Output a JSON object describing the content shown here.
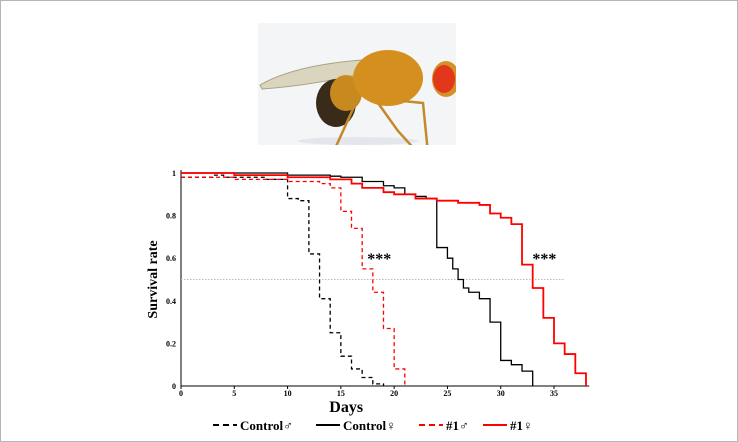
{
  "image": {
    "subject": "fruit fly",
    "background": "#f4f5f7"
  },
  "chart_data": {
    "type": "line",
    "step": true,
    "title": "",
    "xlabel": "Days",
    "ylabel": "Survival rate",
    "xlim": [
      0,
      38
    ],
    "ylim": [
      0,
      1
    ],
    "xticks": [
      0,
      5,
      10,
      15,
      20,
      25,
      30,
      35
    ],
    "yticks": [
      0,
      0.2,
      0.4,
      0.6,
      0.8,
      1
    ],
    "ytick_labels": [
      "0",
      "0.2",
      "0.4",
      "0.6",
      "0.8",
      "1"
    ],
    "grid": false,
    "reference_line": {
      "y": 0.5,
      "style": "dotted",
      "color": "#bbbbbb"
    },
    "legend_placement": "bottom",
    "annotations": [
      {
        "text": "***",
        "x": 18.6,
        "y": 0.6
      },
      {
        "text": "***",
        "x": 34.1,
        "y": 0.6
      }
    ],
    "series": [
      {
        "name": "Control♂",
        "color": "#000000",
        "dash": true,
        "points": [
          [
            0,
            0.98
          ],
          [
            3,
            0.99
          ],
          [
            4,
            0.98
          ],
          [
            8,
            0.97
          ],
          [
            10,
            0.88
          ],
          [
            11,
            0.87
          ],
          [
            12,
            0.62
          ],
          [
            13,
            0.41
          ],
          [
            14,
            0.25
          ],
          [
            15,
            0.14
          ],
          [
            16,
            0.08
          ],
          [
            17,
            0.04
          ],
          [
            18,
            0.01
          ],
          [
            19,
            0
          ]
        ]
      },
      {
        "name": "Control♀",
        "color": "#000000",
        "dash": false,
        "points": [
          [
            0,
            1
          ],
          [
            10,
            0.99
          ],
          [
            14,
            0.985
          ],
          [
            15,
            0.98
          ],
          [
            17,
            0.96
          ],
          [
            19,
            0.94
          ],
          [
            20,
            0.93
          ],
          [
            21,
            0.9
          ],
          [
            22,
            0.89
          ],
          [
            23,
            0.88
          ],
          [
            24,
            0.65
          ],
          [
            25,
            0.6
          ],
          [
            25.5,
            0.55
          ],
          [
            26,
            0.5
          ],
          [
            26.5,
            0.46
          ],
          [
            27,
            0.44
          ],
          [
            28,
            0.41
          ],
          [
            29,
            0.3
          ],
          [
            30,
            0.12
          ],
          [
            31,
            0.1
          ],
          [
            32,
            0.07
          ],
          [
            33,
            0
          ]
        ]
      },
      {
        "name": "#1♂",
        "color": "#ff0000",
        "dash": true,
        "points": [
          [
            0,
            0.98
          ],
          [
            5,
            0.97
          ],
          [
            10,
            0.96
          ],
          [
            13,
            0.95
          ],
          [
            14,
            0.93
          ],
          [
            15,
            0.82
          ],
          [
            16,
            0.74
          ],
          [
            17,
            0.55
          ],
          [
            18,
            0.44
          ],
          [
            19,
            0.27
          ],
          [
            20,
            0.08
          ],
          [
            21,
            0
          ]
        ]
      },
      {
        "name": "#1♀",
        "color": "#ff0000",
        "dash": false,
        "points": [
          [
            0,
            1
          ],
          [
            5,
            0.99
          ],
          [
            10,
            0.98
          ],
          [
            14,
            0.97
          ],
          [
            16,
            0.95
          ],
          [
            17,
            0.93
          ],
          [
            19,
            0.91
          ],
          [
            20,
            0.9
          ],
          [
            22,
            0.88
          ],
          [
            24,
            0.87
          ],
          [
            26,
            0.86
          ],
          [
            28,
            0.85
          ],
          [
            29,
            0.81
          ],
          [
            30,
            0.79
          ],
          [
            31,
            0.76
          ],
          [
            32,
            0.57
          ],
          [
            33,
            0.46
          ],
          [
            34,
            0.32
          ],
          [
            35,
            0.2
          ],
          [
            36,
            0.15
          ],
          [
            37,
            0.06
          ],
          [
            38,
            0
          ]
        ]
      }
    ]
  }
}
